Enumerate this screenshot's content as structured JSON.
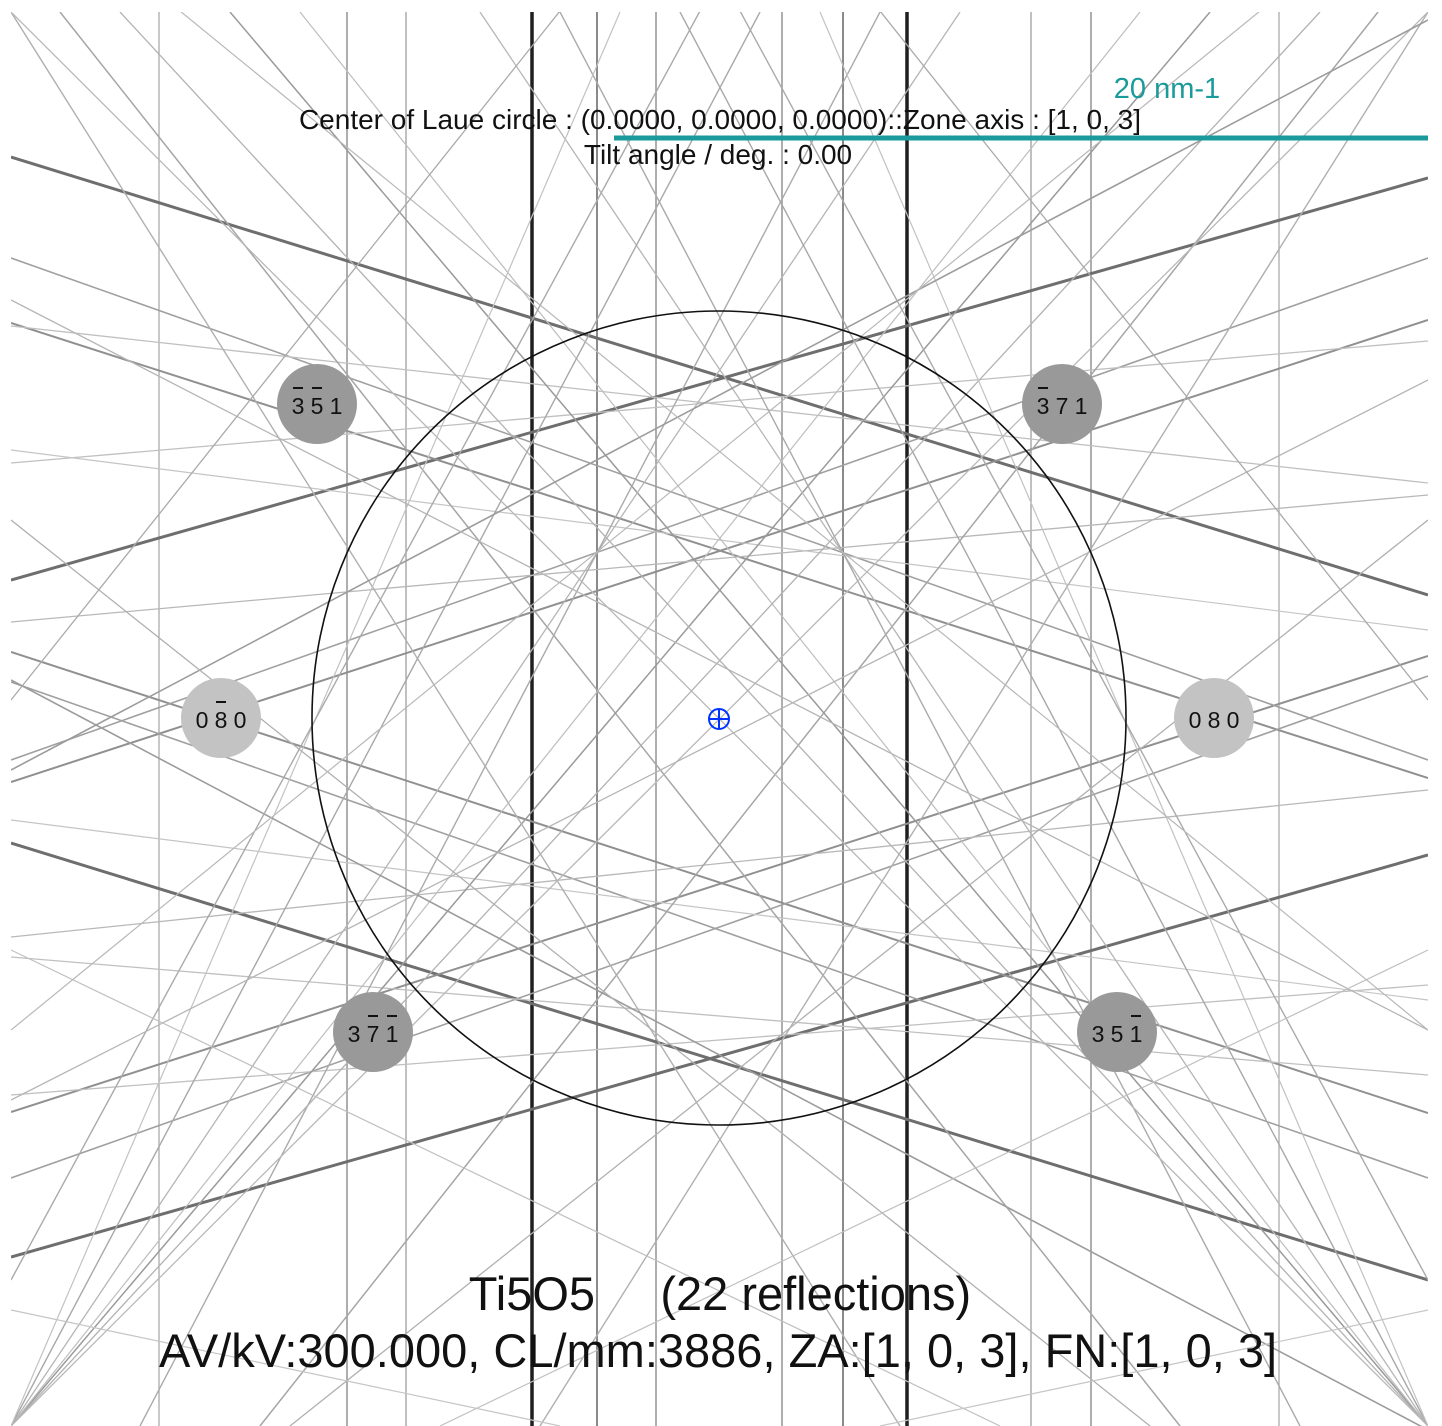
{
  "header": {
    "laue_center": "Center of Laue circle : (0.0000, 0.0000, 0.0000)::Zone axis : [1, 0, 3]",
    "tilt": "Tilt angle / deg. : 0.00"
  },
  "scale_bar": {
    "label": "20 nm-1",
    "color": "#1a9a9a"
  },
  "center_marker": {
    "icon": "crosshair-circle-icon",
    "color": "#0033ff"
  },
  "spots": [
    {
      "h": "3",
      "k": "5",
      "l": "1",
      "bars": [
        true,
        true,
        false
      ],
      "shade": "dark"
    },
    {
      "h": "3",
      "k": "7",
      "l": "1",
      "bars": [
        true,
        false,
        false
      ],
      "shade": "dark"
    },
    {
      "h": "0",
      "k": "8",
      "l": "0",
      "bars": [
        false,
        true,
        false
      ],
      "shade": "light"
    },
    {
      "h": "0",
      "k": "8",
      "l": "0",
      "bars": [
        false,
        false,
        false
      ],
      "shade": "light"
    },
    {
      "h": "3",
      "k": "7",
      "l": "1",
      "bars": [
        false,
        true,
        true
      ],
      "shade": "dark"
    },
    {
      "h": "3",
      "k": "5",
      "l": "1",
      "bars": [
        false,
        false,
        true
      ],
      "shade": "dark"
    }
  ],
  "footer": {
    "title": "Ti5O5     (22 reflections)",
    "params": "AV/kV:300.000, CL/mm:3886, ZA:[1, 0, 3], FN:[1, 0, 3]"
  }
}
